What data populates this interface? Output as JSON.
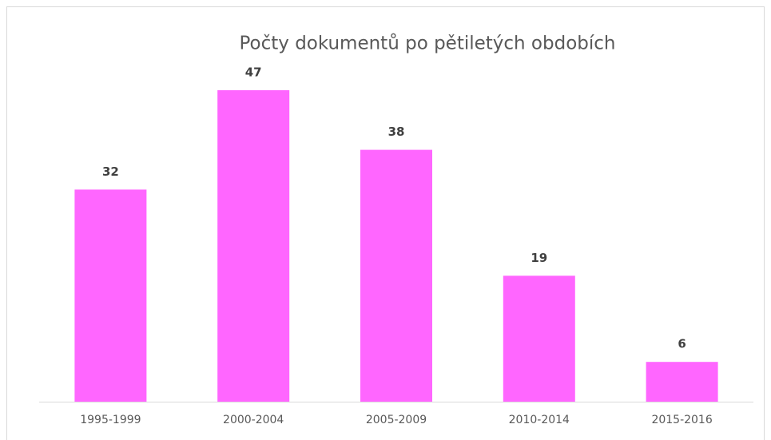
{
  "chart_data": {
    "type": "bar",
    "title": "Počty dokumentů po pětiletých obdobích",
    "categories": [
      "1995-1999",
      "2000-2004",
      "2005-2009",
      "2010-2014",
      "2015-2016"
    ],
    "values": [
      32,
      47,
      38,
      19,
      6
    ],
    "color": "#ff66ff"
  }
}
